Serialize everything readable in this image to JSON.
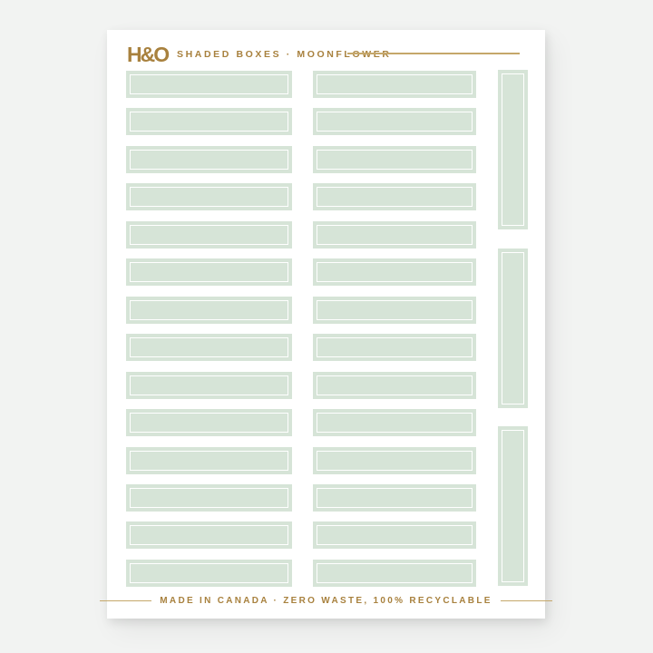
{
  "page": {
    "background_color": "#f2f3f2"
  },
  "sheet": {
    "background_color": "#ffffff",
    "brand": "H&O",
    "product_title": "SHADED BOXES · MOONFLOWER",
    "footer_text": "MADE IN CANADA · ZERO WASTE, 100% RECYCLABLE",
    "accent_color": "#a8813e",
    "rule_color": "#c5a76a",
    "sticker_color": "#d6e4d7",
    "sticker_border_color": "#ffffff",
    "columns": [
      {
        "id": "left",
        "orientation": "horizontal",
        "count": 14
      },
      {
        "id": "middle",
        "orientation": "horizontal",
        "count": 14
      },
      {
        "id": "right",
        "orientation": "vertical",
        "count": 3
      }
    ]
  }
}
